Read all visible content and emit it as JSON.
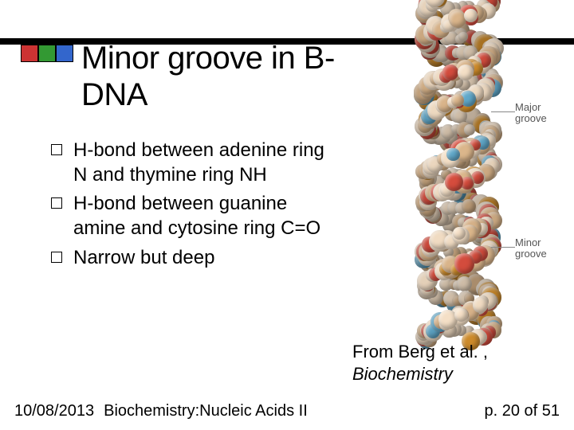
{
  "header": {
    "accent_colors": [
      "#cc3333",
      "#339933",
      "#3366cc"
    ],
    "title": "Minor groove in B-DNA"
  },
  "bullets": [
    "H-bond between adenine ring N and thymine ring NH",
    "H-bond between guanine amine and cytosine ring C=O",
    "Narrow but deep"
  ],
  "figure": {
    "labels": {
      "major": "Major\ngroove",
      "minor": "Minor\ngroove"
    },
    "caption_prefix": "From Berg et al. , ",
    "caption_italic": "Biochemistry",
    "palette": {
      "carbon_light": "#f2ddc4",
      "carbon_dark": "#d9b48a",
      "oxygen_red": "#d14b3c",
      "nitrogen_blue": "#5fa6c7",
      "phosphorus": "#cc8a2a"
    }
  },
  "footer": {
    "date": "10/08/2013",
    "course": "Biochemistry:Nucleic Acids II",
    "page_prefix": "p. ",
    "page_current": 20,
    "page_of": " of ",
    "page_total": 51
  }
}
